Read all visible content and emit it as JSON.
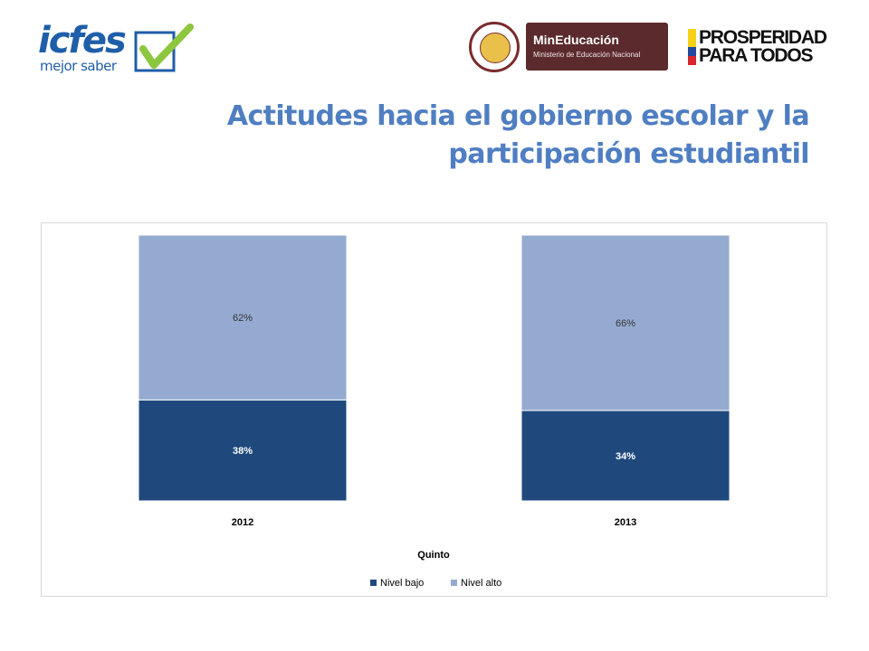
{
  "header": {
    "icfes_word": "icfes",
    "icfes_tagline": "mejor saber",
    "mineducacion_title": "MinEducación",
    "mineducacion_subtitle": "Ministerio de Educación Nacional",
    "prosperidad_line1": "PROSPERIDAD",
    "prosperidad_line2": "PARA TODOS",
    "colors": {
      "icfes_blue": "#1f5ea8",
      "icfes_check": "#8dc63f",
      "mineducacion_bg": "#5b2a2c"
    }
  },
  "title": "Actitudes hacia el gobierno escolar y la participación estudiantil",
  "chart_data": {
    "type": "bar",
    "stacked": true,
    "categories": [
      "2012",
      "2013"
    ],
    "xlabel": "Quinto",
    "ylabel": "",
    "ylim": [
      0,
      100
    ],
    "grid": false,
    "legend_position": "bottom",
    "series": [
      {
        "name": "Nivel bajo",
        "values": [
          38,
          34
        ],
        "labels": [
          "38%",
          "34%"
        ],
        "color": "#1f497d",
        "label_color": "#ffffff"
      },
      {
        "name": "Nivel alto",
        "values": [
          62,
          66
        ],
        "labels": [
          "62%",
          "66%"
        ],
        "color": "#95aad1",
        "label_color": "#333333"
      }
    ]
  }
}
